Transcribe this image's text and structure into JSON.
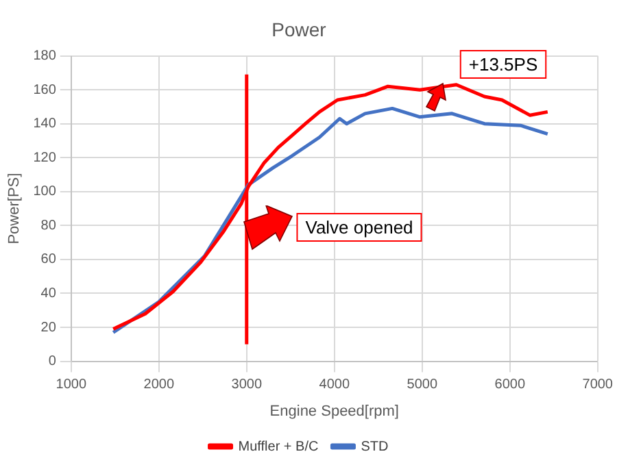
{
  "chart_data": {
    "type": "line",
    "title": "Power",
    "xlabel": "Engine Speed[rpm]",
    "ylabel": "Power[PS]",
    "xlim": [
      1000,
      7000
    ],
    "xticks": [
      1000,
      2000,
      3000,
      4000,
      5000,
      6000,
      7000
    ],
    "ylim": [
      0,
      180
    ],
    "yticks": [
      0,
      20,
      40,
      60,
      80,
      100,
      120,
      140,
      160,
      180
    ],
    "grid": true,
    "legend": "bottom",
    "marker": "none",
    "line_style": "solid",
    "series": [
      {
        "name": "Muffler + B/C",
        "color": "#ff0000",
        "x": [
          1480,
          1845,
          2160,
          2470,
          2730,
          2940,
          3020,
          3200,
          3360,
          3515,
          3670,
          3830,
          4035,
          4350,
          4610,
          4975,
          5390,
          5710,
          5910,
          6230,
          6430
        ],
        "values": [
          19,
          28,
          41,
          58,
          76,
          93,
          103,
          117,
          126,
          133,
          140,
          147,
          154,
          157,
          162,
          160,
          163,
          156,
          154,
          145,
          147
        ]
      },
      {
        "name": "STD",
        "color": "#4472c4",
        "x": [
          1480,
          2000,
          2520,
          3020,
          3300,
          3515,
          3830,
          4060,
          4140,
          4350,
          4660,
          4975,
          5340,
          5710,
          6120,
          6430
        ],
        "values": [
          17,
          35,
          62,
          104,
          114,
          121,
          132,
          143,
          140,
          146,
          149,
          144,
          146,
          140,
          139,
          134
        ]
      },
      {
        "color": "#ff0000",
        "x": [
          3000,
          3000
        ],
        "values": [
          10,
          169
        ]
      }
    ],
    "annotations": [
      "Valve opened",
      "+13.5PS"
    ]
  }
}
